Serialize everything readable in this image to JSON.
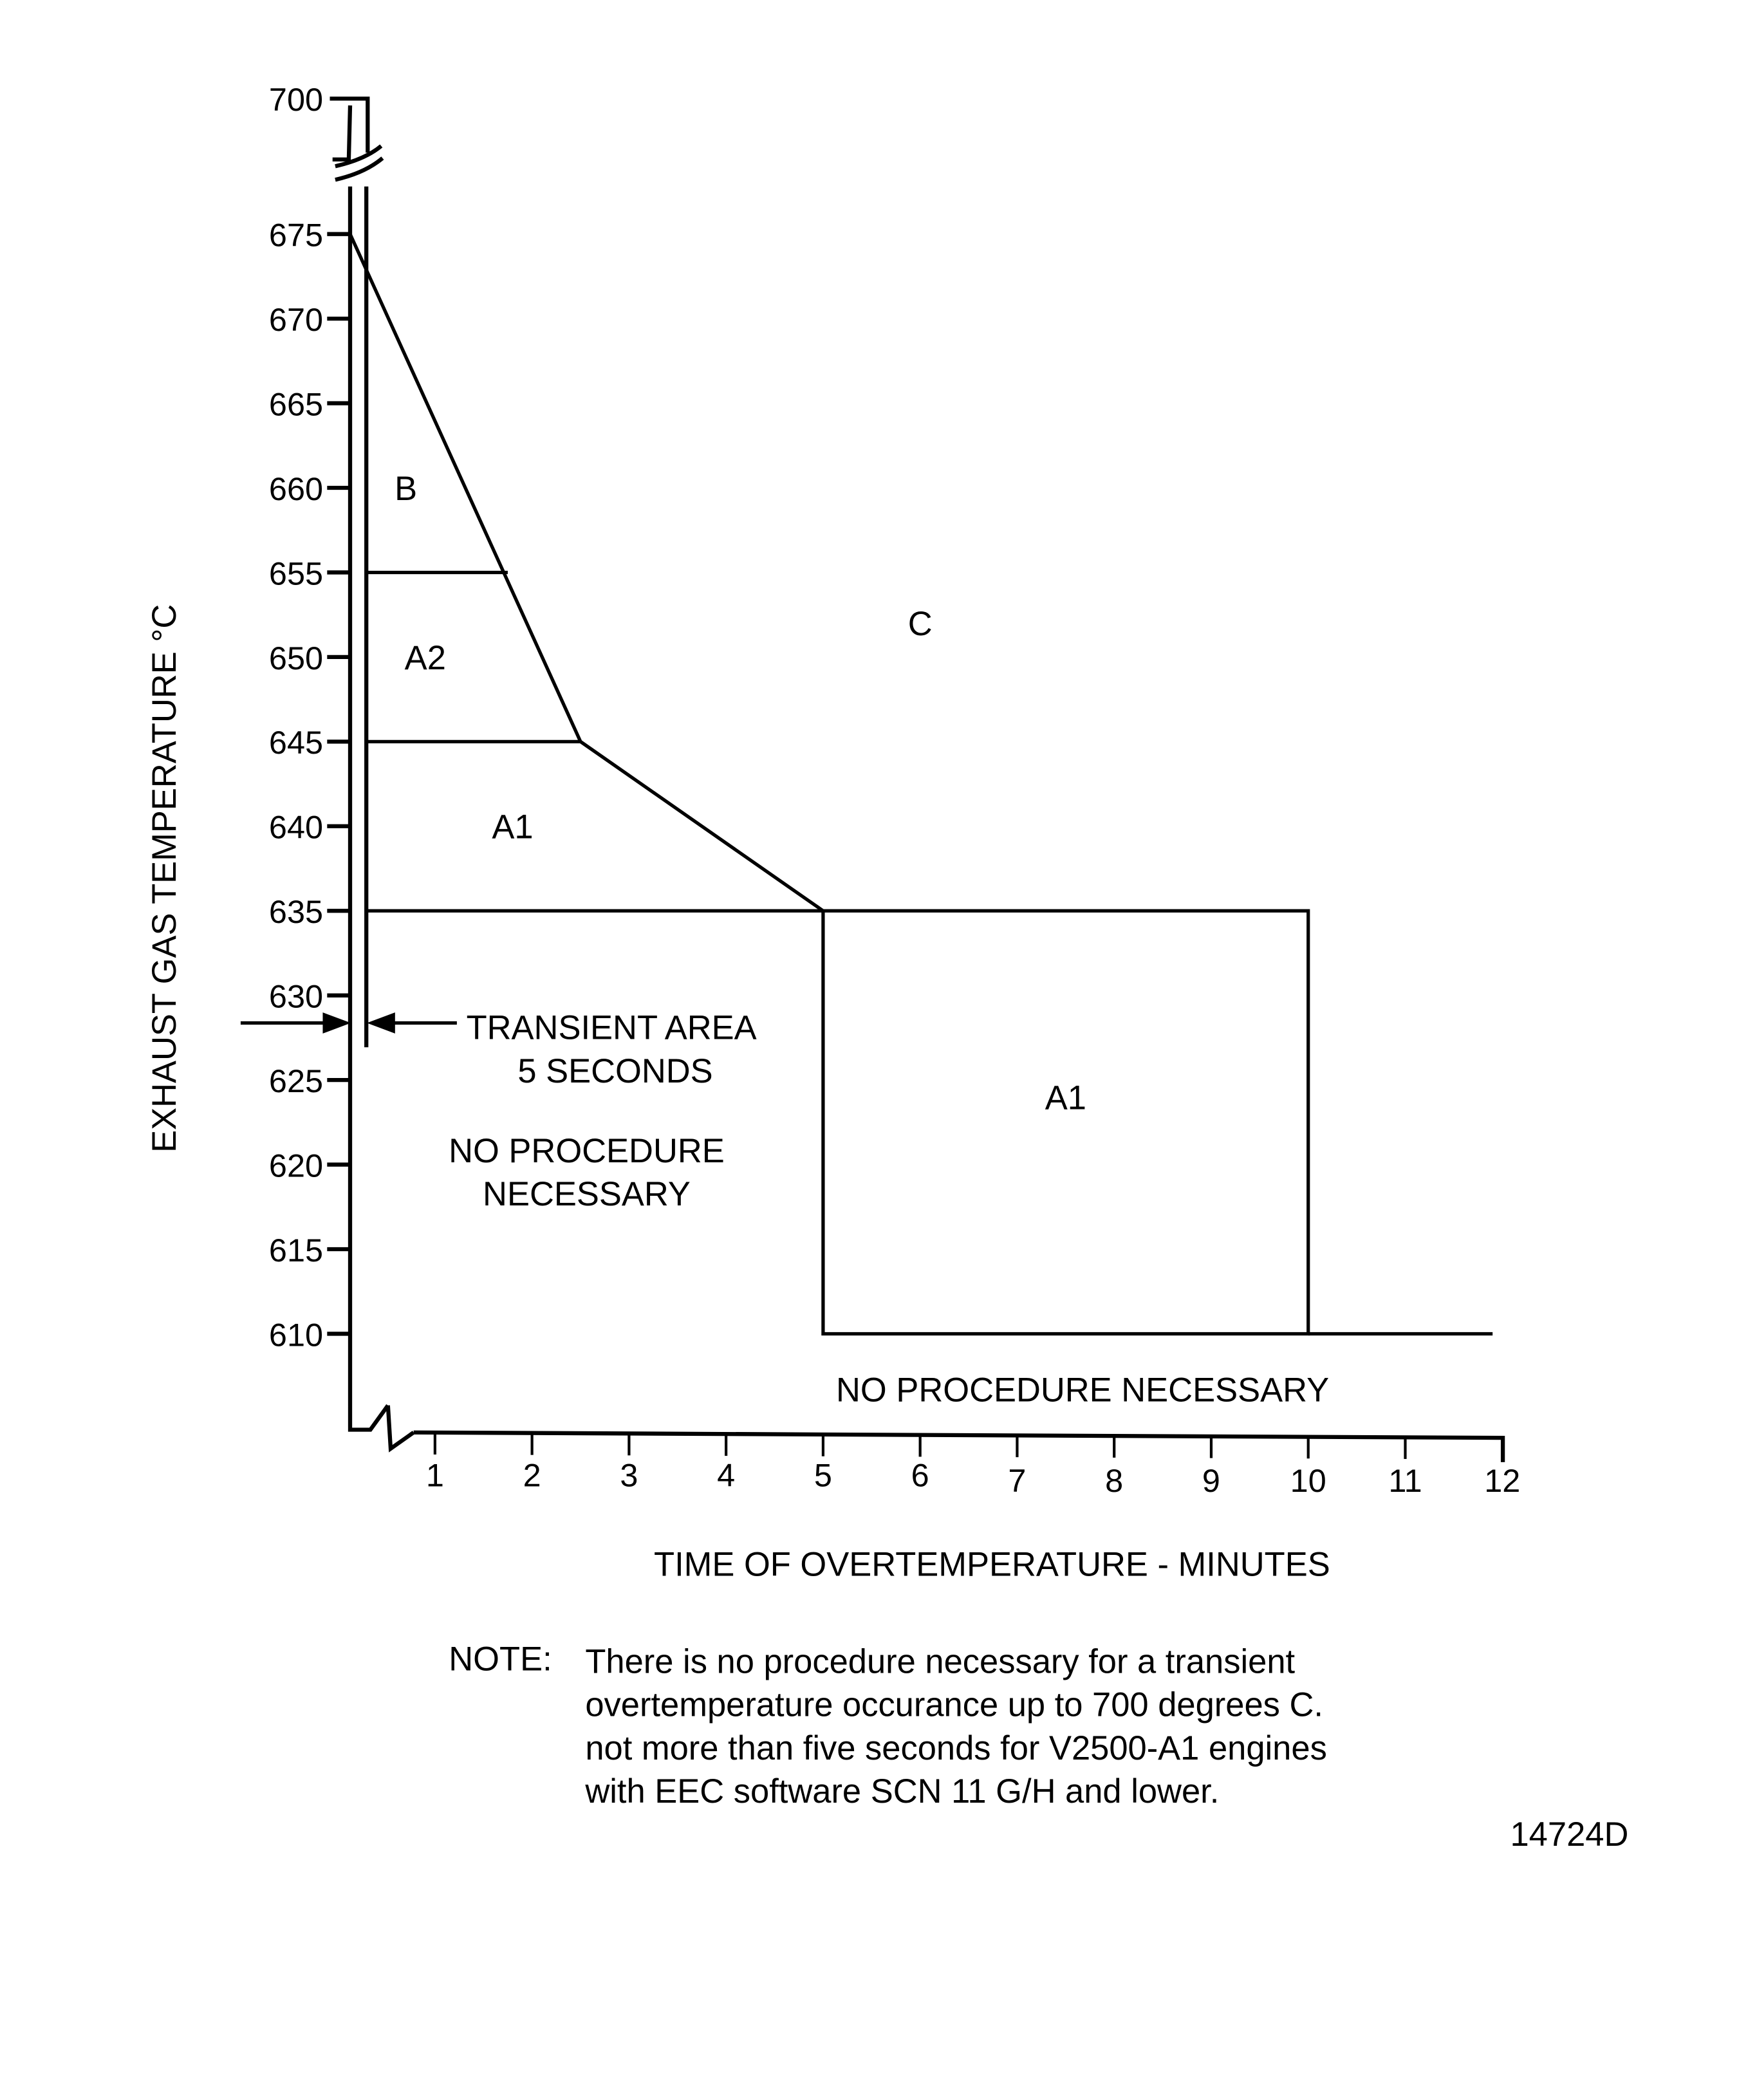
{
  "chart_data": {
    "type": "line",
    "xlabel": "TIME OF OVERTEMPERATURE - MINUTES",
    "ylabel": "EXHAUST GAS TEMPERATURE  °C",
    "x_ticks": [
      "1",
      "2",
      "3",
      "4",
      "5",
      "6",
      "7",
      "8",
      "9",
      "10",
      "11",
      "12"
    ],
    "y_ticks": [
      "700",
      "675",
      "670",
      "665",
      "660",
      "655",
      "650",
      "645",
      "640",
      "635",
      "630",
      "625",
      "620",
      "615",
      "610"
    ],
    "xlim": [
      0,
      12
    ],
    "ylim": [
      610,
      700
    ],
    "axis_breaks": [
      "y between 675 and 700",
      "x between 0 and 1"
    ],
    "boundaries": [
      {
        "points": [
          [
            0,
            675
          ],
          [
            2.5,
            645
          ],
          [
            5,
            635
          ]
        ]
      },
      {
        "points": [
          [
            0.08,
            655
          ],
          [
            1.75,
            655
          ]
        ]
      },
      {
        "points": [
          [
            0.08,
            645
          ],
          [
            2.5,
            645
          ]
        ]
      },
      {
        "points": [
          [
            0.08,
            635
          ],
          [
            10,
            635
          ],
          [
            10,
            610
          ],
          [
            5,
            610
          ],
          [
            5,
            635
          ]
        ]
      },
      {
        "points": [
          [
            10,
            610
          ],
          [
            11.9,
            610
          ]
        ]
      }
    ],
    "regions": [
      {
        "label": "B",
        "x": 0.7,
        "y": 660
      },
      {
        "label": "A2",
        "x": 0.9,
        "y": 650
      },
      {
        "label": "A1",
        "x": 1.8,
        "y": 640
      },
      {
        "label": "C",
        "x": 6,
        "y": 652
      },
      {
        "label": "A1",
        "x": 7.5,
        "y": 624
      }
    ],
    "annotations": {
      "transient_line1": "TRANSIENT AREA",
      "transient_line2": "5 SECONDS",
      "no_proc_left_1": "NO PROCEDURE",
      "no_proc_left_2": "NECESSARY",
      "no_proc_bottom": "NO PROCEDURE NECESSARY"
    },
    "grid": false
  },
  "note": {
    "label": "NOTE:",
    "lines": [
      "There is no procedure necessary for a transient",
      "overtemperature occurance up to 700 degrees C.",
      "not more than five seconds for V2500-A1 engines",
      "with EEC software SCN 11 G/H and lower."
    ]
  },
  "figure_id": "14724D"
}
